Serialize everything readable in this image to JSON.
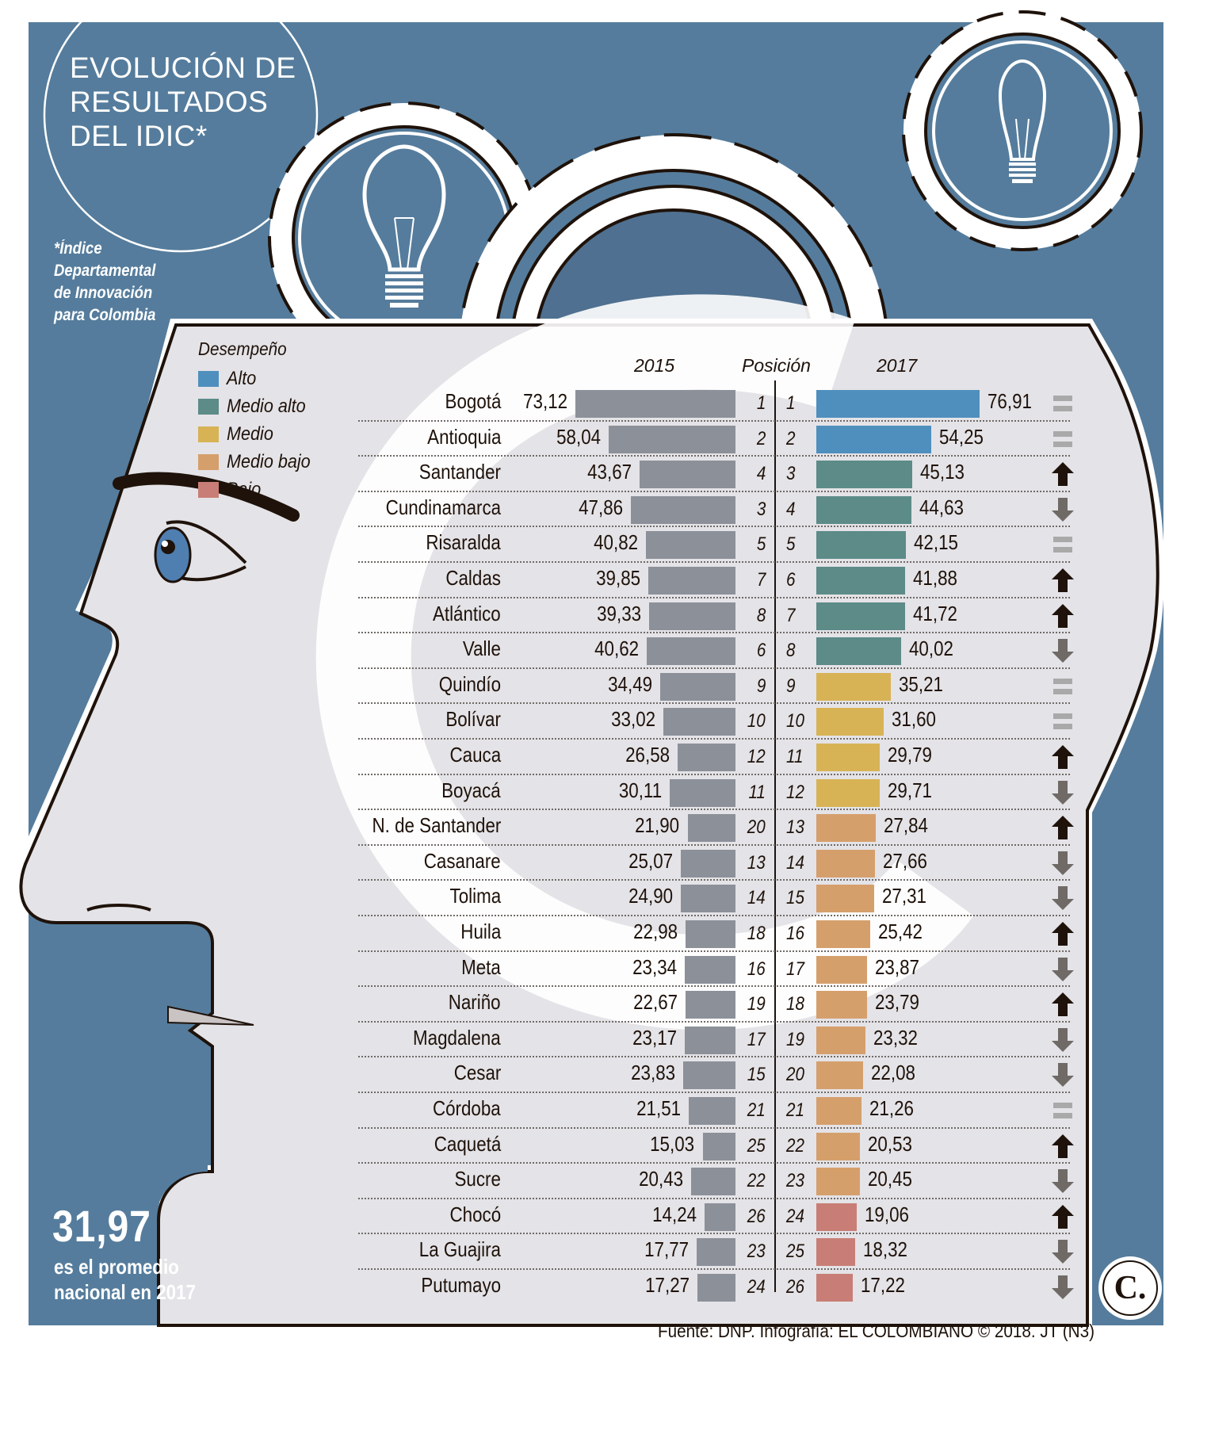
{
  "title": {
    "lines": [
      "EVOLUCIÓN DE",
      "RESULTADOS",
      "DEL IDIC*"
    ]
  },
  "footnote": {
    "lines": [
      "*Índice",
      "Departamental",
      "de Innovación",
      "para Colombia"
    ]
  },
  "legend": {
    "title": "Desempeño",
    "items": [
      {
        "label": "Alto",
        "color": "#4f8fbd"
      },
      {
        "label": "Medio alto",
        "color": "#5c8b88"
      },
      {
        "label": "Medio",
        "color": "#d7b356"
      },
      {
        "label": "Medio bajo",
        "color": "#d59f6c"
      },
      {
        "label": "Bajo",
        "color": "#c87e76"
      }
    ]
  },
  "headers": {
    "y2015": "2015",
    "position": "Posición",
    "y2017": "2017"
  },
  "colors": {
    "background_blue": "#557c9c",
    "head_fill": "#e4e3e7",
    "bar_2015": "#8c9099",
    "up_arrow": "#1e120a",
    "down_arrow": "#6f6a66",
    "equal": "#a9a9a9",
    "text": "#1e120a"
  },
  "stat": {
    "value": "31,97",
    "label_lines": [
      "es el promedio",
      "nacional en 2017"
    ]
  },
  "source": "Fuente: DNP. Infografía: EL COLOMBIANO © 2018. JT (N3)",
  "logo": "C.",
  "chart_data": {
    "type": "bar",
    "title": "EVOLUCIÓN DE RESULTADOS DEL IDIC*",
    "subtitle": "*Índice Departamental de Innovación para Colombia",
    "xlabel": "",
    "ylabel": "",
    "legend_title": "Desempeño",
    "legend_position": "top-left",
    "grid": false,
    "orientation": "horizontal",
    "categories": [
      "Bogotá",
      "Antioquia",
      "Santander",
      "Cundinamarca",
      "Risaralda",
      "Caldas",
      "Atlántico",
      "Valle",
      "Quindío",
      "Bolívar",
      "Cauca",
      "Boyacá",
      "N. de Santander",
      "Casanare",
      "Tolima",
      "Huila",
      "Meta",
      "Nariño",
      "Magdalena",
      "Cesar",
      "Córdoba",
      "Caquetá",
      "Sucre",
      "Chocó",
      "La Guajira",
      "Putumayo"
    ],
    "series": [
      {
        "name": "2015",
        "values": [
          73.12,
          58.04,
          43.67,
          47.86,
          40.82,
          39.85,
          39.33,
          40.62,
          34.49,
          33.02,
          26.58,
          30.11,
          21.9,
          25.07,
          24.9,
          22.98,
          23.34,
          22.67,
          23.17,
          23.83,
          21.51,
          15.03,
          20.43,
          14.24,
          17.77,
          17.27
        ]
      },
      {
        "name": "2017",
        "values": [
          76.91,
          54.25,
          45.13,
          44.63,
          42.15,
          41.88,
          41.72,
          40.02,
          35.21,
          31.6,
          29.79,
          29.71,
          27.84,
          27.66,
          27.31,
          25.42,
          23.87,
          23.79,
          23.32,
          22.08,
          21.26,
          20.53,
          20.45,
          19.06,
          18.32,
          17.22
        ]
      }
    ],
    "positions_2015": [
      1,
      2,
      4,
      3,
      5,
      7,
      8,
      6,
      9,
      10,
      12,
      11,
      20,
      13,
      14,
      18,
      16,
      19,
      17,
      15,
      21,
      25,
      22,
      26,
      23,
      24
    ],
    "positions_2017": [
      1,
      2,
      3,
      4,
      5,
      6,
      7,
      8,
      9,
      10,
      11,
      12,
      13,
      14,
      15,
      16,
      17,
      18,
      19,
      20,
      21,
      22,
      23,
      24,
      25,
      26
    ],
    "performance_2017": [
      "Alto",
      "Alto",
      "Medio alto",
      "Medio alto",
      "Medio alto",
      "Medio alto",
      "Medio alto",
      "Medio alto",
      "Medio",
      "Medio",
      "Medio",
      "Medio",
      "Medio bajo",
      "Medio bajo",
      "Medio bajo",
      "Medio bajo",
      "Medio bajo",
      "Medio bajo",
      "Medio bajo",
      "Medio bajo",
      "Medio bajo",
      "Medio bajo",
      "Medio bajo",
      "Bajo",
      "Bajo",
      "Bajo"
    ],
    "trend": [
      "equal",
      "equal",
      "up",
      "down",
      "equal",
      "up",
      "up",
      "down",
      "equal",
      "equal",
      "up",
      "down",
      "up",
      "down",
      "down",
      "up",
      "down",
      "up",
      "down",
      "down",
      "equal",
      "up",
      "down",
      "up",
      "down",
      "down"
    ],
    "national_average_2017": 31.97
  },
  "rows": [
    {
      "name": "Bogotá",
      "v15": "73,12",
      "p15": "1",
      "p17": "1",
      "v17": "76,91",
      "level": "Alto",
      "trend": "equal"
    },
    {
      "name": "Antioquia",
      "v15": "58,04",
      "p15": "2",
      "p17": "2",
      "v17": "54,25",
      "level": "Alto",
      "trend": "equal"
    },
    {
      "name": "Santander",
      "v15": "43,67",
      "p15": "4",
      "p17": "3",
      "v17": "45,13",
      "level": "Medio alto",
      "trend": "up"
    },
    {
      "name": "Cundinamarca",
      "v15": "47,86",
      "p15": "3",
      "p17": "4",
      "v17": "44,63",
      "level": "Medio alto",
      "trend": "down"
    },
    {
      "name": "Risaralda",
      "v15": "40,82",
      "p15": "5",
      "p17": "5",
      "v17": "42,15",
      "level": "Medio alto",
      "trend": "equal"
    },
    {
      "name": "Caldas",
      "v15": "39,85",
      "p15": "7",
      "p17": "6",
      "v17": "41,88",
      "level": "Medio alto",
      "trend": "up"
    },
    {
      "name": "Atlántico",
      "v15": "39,33",
      "p15": "8",
      "p17": "7",
      "v17": "41,72",
      "level": "Medio alto",
      "trend": "up"
    },
    {
      "name": "Valle",
      "v15": "40,62",
      "p15": "6",
      "p17": "8",
      "v17": "40,02",
      "level": "Medio alto",
      "trend": "down"
    },
    {
      "name": "Quindío",
      "v15": "34,49",
      "p15": "9",
      "p17": "9",
      "v17": "35,21",
      "level": "Medio",
      "trend": "equal"
    },
    {
      "name": "Bolívar",
      "v15": "33,02",
      "p15": "10",
      "p17": "10",
      "v17": "31,60",
      "level": "Medio",
      "trend": "equal"
    },
    {
      "name": "Cauca",
      "v15": "26,58",
      "p15": "12",
      "p17": "11",
      "v17": "29,79",
      "level": "Medio",
      "trend": "up"
    },
    {
      "name": "Boyacá",
      "v15": "30,11",
      "p15": "11",
      "p17": "12",
      "v17": "29,71",
      "level": "Medio",
      "trend": "down"
    },
    {
      "name": "N. de Santander",
      "v15": "21,90",
      "p15": "20",
      "p17": "13",
      "v17": "27,84",
      "level": "Medio bajo",
      "trend": "up"
    },
    {
      "name": "Casanare",
      "v15": "25,07",
      "p15": "13",
      "p17": "14",
      "v17": "27,66",
      "level": "Medio bajo",
      "trend": "down"
    },
    {
      "name": "Tolima",
      "v15": "24,90",
      "p15": "14",
      "p17": "15",
      "v17": "27,31",
      "level": "Medio bajo",
      "trend": "down"
    },
    {
      "name": "Huila",
      "v15": "22,98",
      "p15": "18",
      "p17": "16",
      "v17": "25,42",
      "level": "Medio bajo",
      "trend": "up"
    },
    {
      "name": "Meta",
      "v15": "23,34",
      "p15": "16",
      "p17": "17",
      "v17": "23,87",
      "level": "Medio bajo",
      "trend": "down"
    },
    {
      "name": "Nariño",
      "v15": "22,67",
      "p15": "19",
      "p17": "18",
      "v17": "23,79",
      "level": "Medio bajo",
      "trend": "up"
    },
    {
      "name": "Magdalena",
      "v15": "23,17",
      "p15": "17",
      "p17": "19",
      "v17": "23,32",
      "level": "Medio bajo",
      "trend": "down"
    },
    {
      "name": "Cesar",
      "v15": "23,83",
      "p15": "15",
      "p17": "20",
      "v17": "22,08",
      "level": "Medio bajo",
      "trend": "down"
    },
    {
      "name": "Córdoba",
      "v15": "21,51",
      "p15": "21",
      "p17": "21",
      "v17": "21,26",
      "level": "Medio bajo",
      "trend": "equal"
    },
    {
      "name": "Caquetá",
      "v15": "15,03",
      "p15": "25",
      "p17": "22",
      "v17": "20,53",
      "level": "Medio bajo",
      "trend": "up"
    },
    {
      "name": "Sucre",
      "v15": "20,43",
      "p15": "22",
      "p17": "23",
      "v17": "20,45",
      "level": "Medio bajo",
      "trend": "down"
    },
    {
      "name": "Chocó",
      "v15": "14,24",
      "p15": "26",
      "p17": "24",
      "v17": "19,06",
      "level": "Bajo",
      "trend": "up"
    },
    {
      "name": "La Guajira",
      "v15": "17,77",
      "p15": "23",
      "p17": "25",
      "v17": "18,32",
      "level": "Bajo",
      "trend": "down"
    },
    {
      "name": "Putumayo",
      "v15": "17,27",
      "p15": "24",
      "p17": "26",
      "v17": "17,22",
      "level": "Bajo",
      "trend": "down"
    }
  ]
}
